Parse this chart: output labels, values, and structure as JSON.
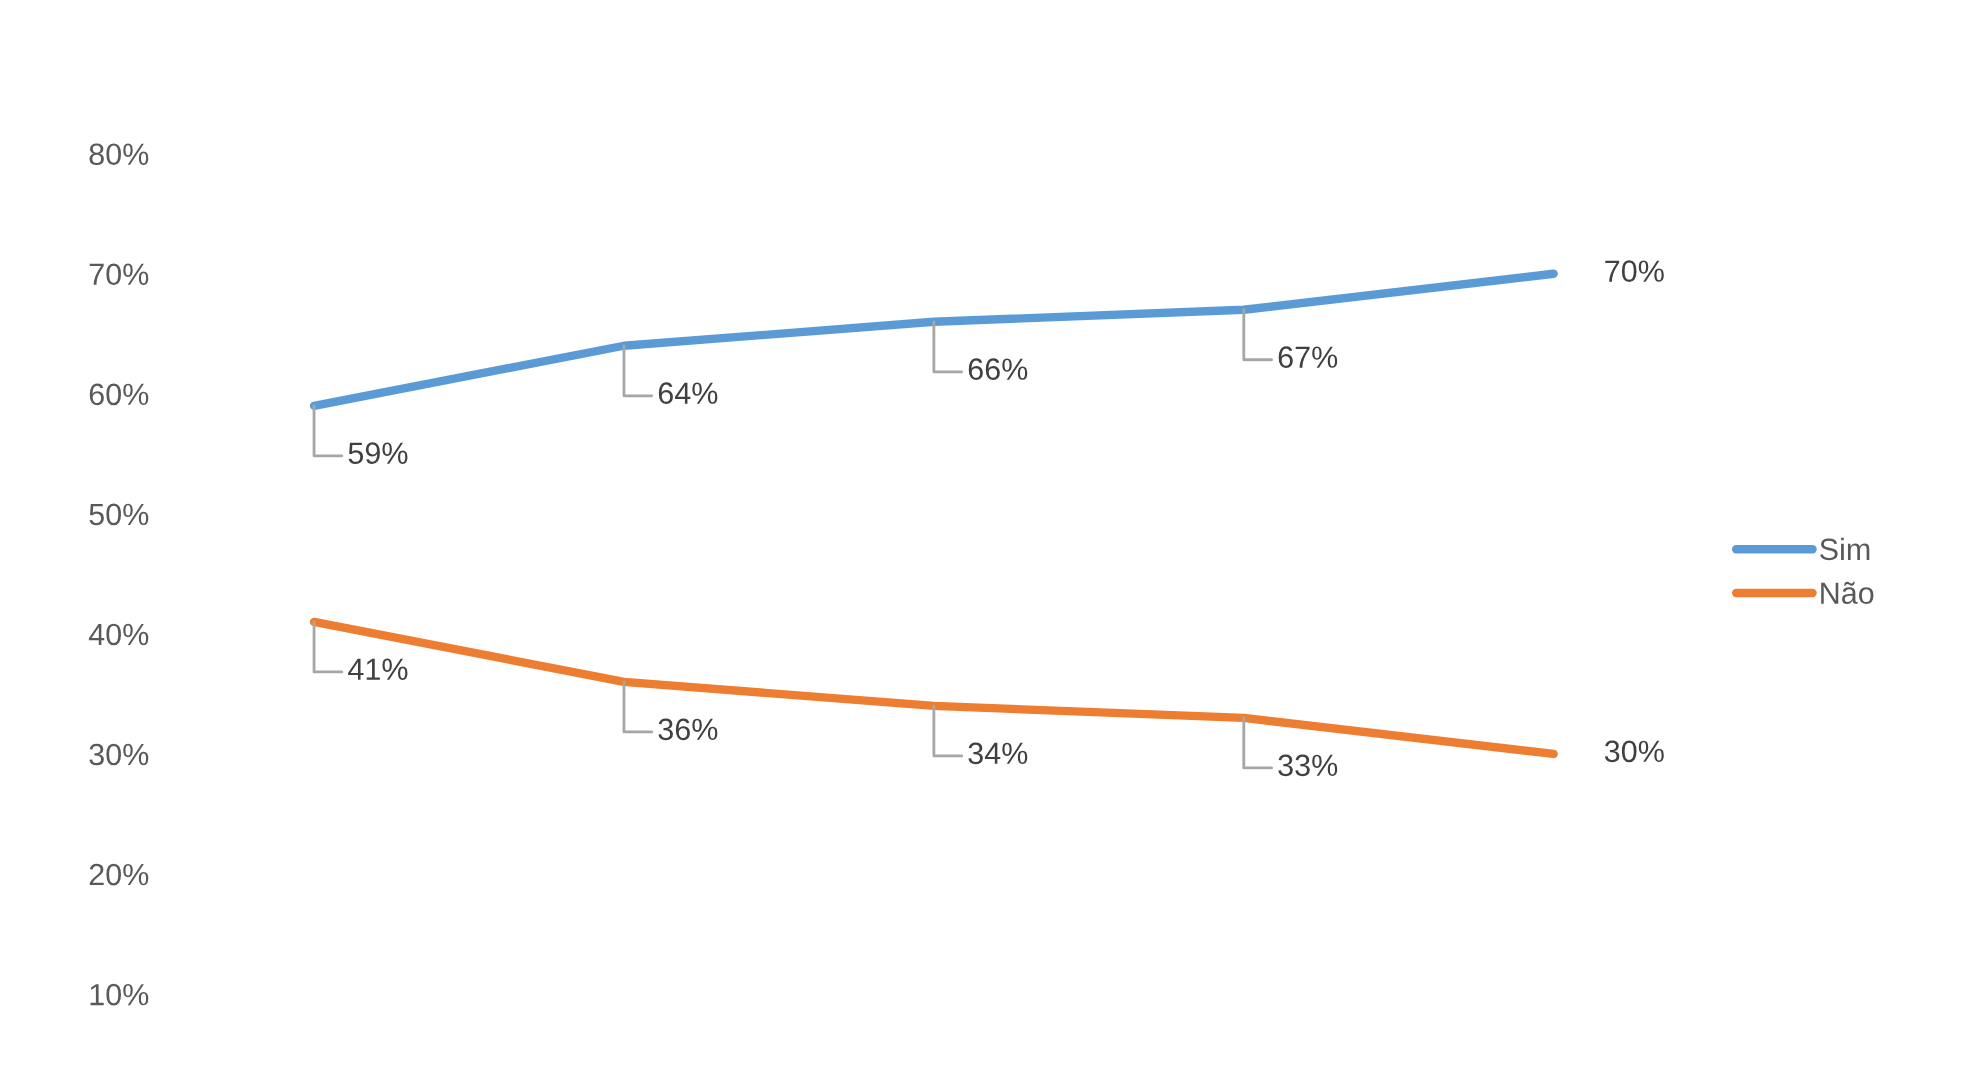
{
  "chart_data": {
    "type": "line",
    "categories": [
      null,
      null,
      null,
      null,
      null
    ],
    "series": [
      {
        "name": "Sim",
        "color": "#5b9bd5",
        "values": [
          59,
          64,
          66,
          67,
          70
        ],
        "value_labels": [
          "59%",
          "64%",
          "66%",
          "67%",
          "70%"
        ]
      },
      {
        "name": "Não",
        "color": "#ed7d31",
        "values": [
          41,
          36,
          34,
          33,
          30
        ],
        "value_labels": [
          "41%",
          "36%",
          "34%",
          "33%",
          "30%"
        ]
      }
    ],
    "ylim": [
      10,
      80
    ],
    "yticks": [
      {
        "value": 10,
        "label": "10%"
      },
      {
        "value": 20,
        "label": "20%"
      },
      {
        "value": 30,
        "label": "30%"
      },
      {
        "value": 40,
        "label": "40%"
      },
      {
        "value": 50,
        "label": "50%"
      },
      {
        "value": 60,
        "label": "60%"
      },
      {
        "value": 70,
        "label": "70%"
      },
      {
        "value": 80,
        "label": "80%"
      }
    ],
    "tick_labels": "y",
    "grid": false,
    "legend": "right",
    "marker": "none",
    "line_style": "solid"
  }
}
